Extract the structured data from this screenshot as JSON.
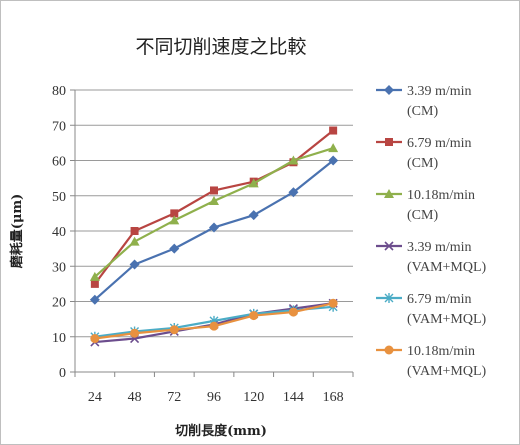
{
  "chart_data": {
    "type": "line",
    "title": "不同切削速度之比較",
    "xlabel": "切削長度(mm)",
    "ylabel": "磨耗量(μm)",
    "categories": [
      "24",
      "48",
      "72",
      "96",
      "120",
      "144",
      "168"
    ],
    "ylim": [
      0,
      80
    ],
    "yticks": [
      0,
      10,
      20,
      30,
      40,
      50,
      60,
      70,
      80
    ],
    "grid": true,
    "legend_position": "right",
    "series": [
      {
        "name": "3.39 m/min (CM)",
        "legend_lines": [
          "3.39 m/min",
          "(CM)"
        ],
        "color": "#4a72b0",
        "marker": "diamond",
        "values": [
          20.5,
          30.5,
          35,
          41,
          44.5,
          51,
          60
        ]
      },
      {
        "name": "6.79 m/min (CM)",
        "legend_lines": [
          "6.79 m/min",
          "(CM)"
        ],
        "color": "#b84542",
        "marker": "square",
        "values": [
          25,
          40,
          45,
          51.5,
          54,
          59.5,
          68.5
        ]
      },
      {
        "name": "10.18m/min (CM)",
        "legend_lines": [
          "10.18m/min",
          "(CM)"
        ],
        "color": "#8fb04c",
        "marker": "triangle",
        "values": [
          27,
          37,
          43,
          48.5,
          53.5,
          60,
          63.5
        ]
      },
      {
        "name": "3.39 m/min (VAM+MQL)",
        "legend_lines": [
          "3.39 m/min",
          "(VAM+MQL)"
        ],
        "color": "#6c4d8d",
        "marker": "x",
        "values": [
          8.5,
          9.5,
          11.5,
          13.5,
          16.5,
          18,
          19.5
        ]
      },
      {
        "name": "6.79 m/min (VAM+MQL)",
        "legend_lines": [
          "6.79 m/min",
          "(VAM+MQL)"
        ],
        "color": "#4bacc6",
        "marker": "star",
        "values": [
          10,
          11.5,
          12.5,
          14.5,
          16.5,
          17.5,
          18.5
        ]
      },
      {
        "name": "10.18m/min (VAM+MQL)",
        "legend_lines": [
          "10.18m/min",
          "(VAM+MQL)"
        ],
        "color": "#e8913f",
        "marker": "circle",
        "values": [
          9.5,
          11,
          12,
          13,
          16,
          17,
          19.5
        ]
      }
    ]
  }
}
